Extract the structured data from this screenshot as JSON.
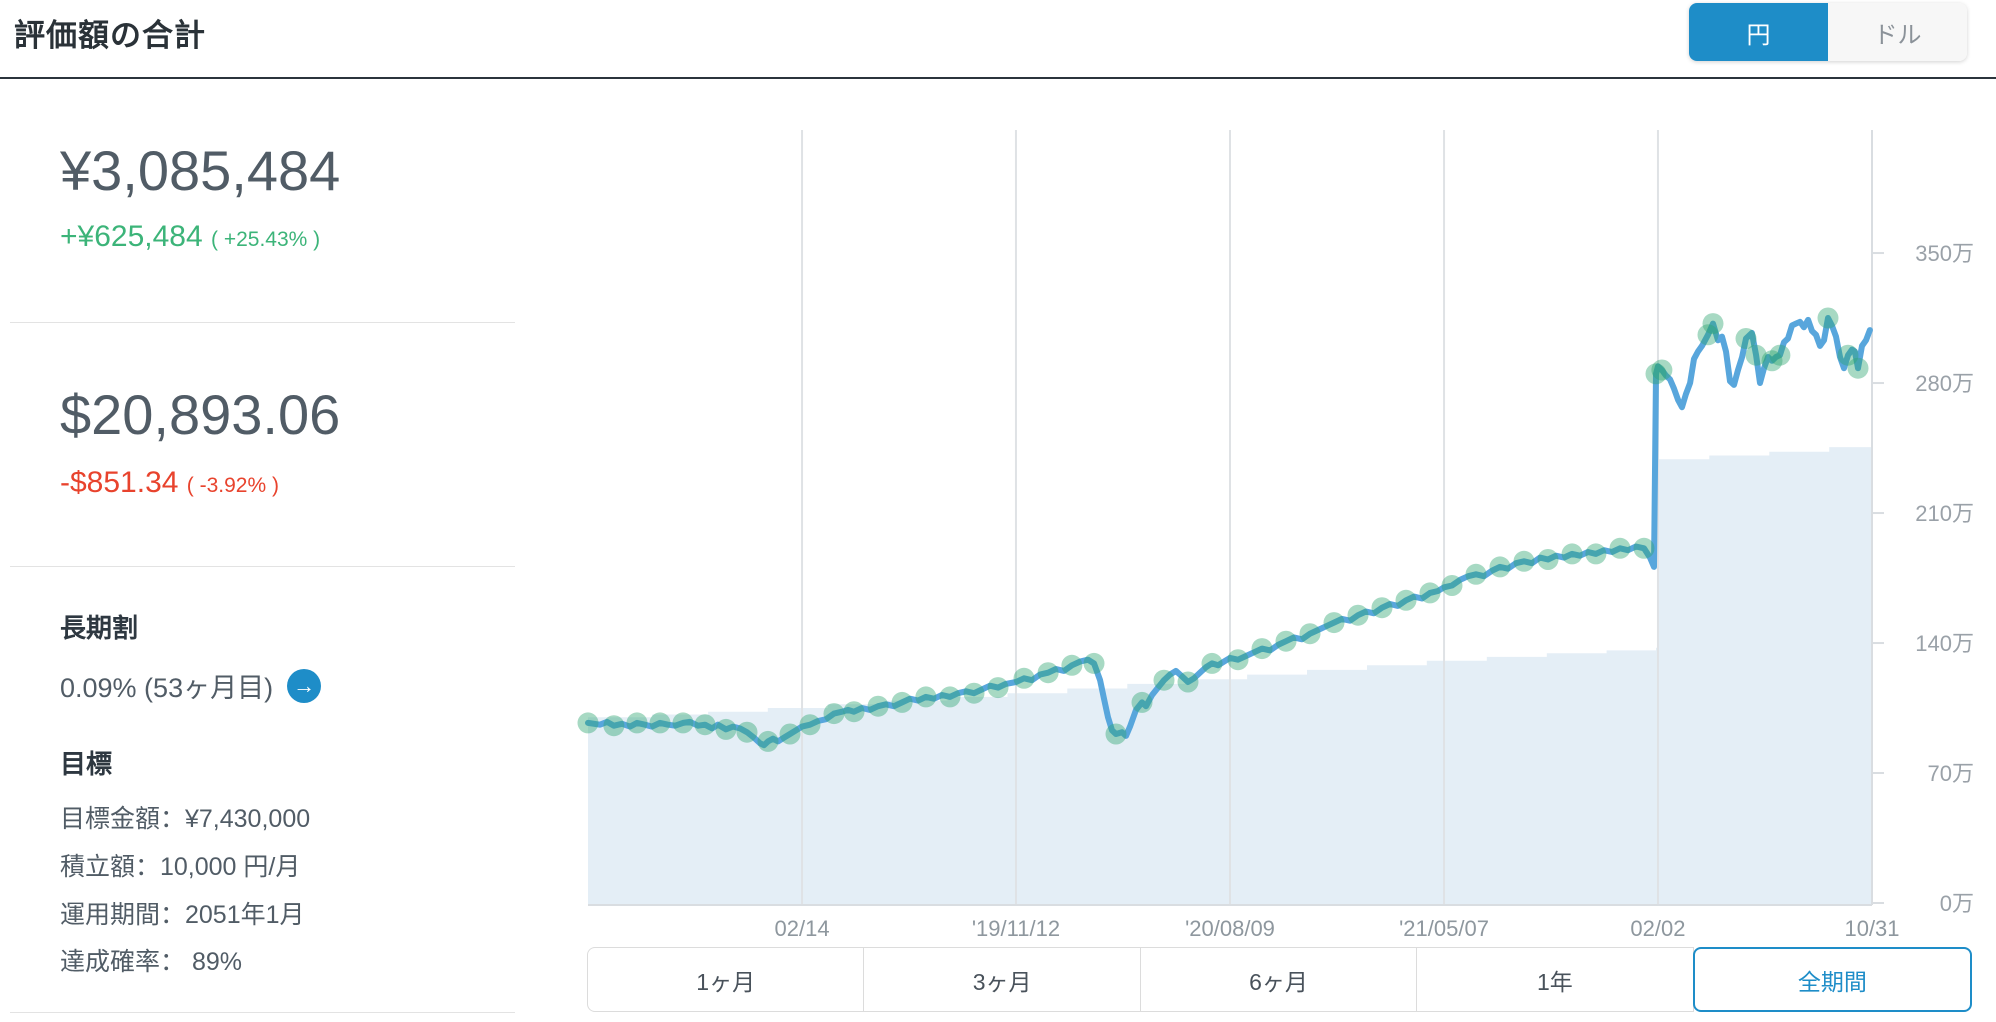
{
  "header": {
    "title": "評価額の合計"
  },
  "currency_toggle": {
    "yen_label": "円",
    "dollar_label": "ドル",
    "selected": "yen"
  },
  "summary": {
    "yen_total": "¥3,085,484",
    "yen_change": "+¥625,484",
    "yen_change_pct": "( +25.43% )",
    "usd_total": "$20,893.06",
    "usd_change": "-$851.34",
    "usd_change_pct": "( -3.92% )"
  },
  "long_term_discount": {
    "heading": "長期割",
    "value": "0.09% (53ヶ月目)",
    "arrow_icon": "→"
  },
  "goal": {
    "heading": "目標",
    "target_amount": "目標金額：¥7,430,000",
    "monthly_deposit": "積立額：10,000 円/月",
    "period": "運用期間：2051年1月",
    "probability": "達成確率： 89%"
  },
  "period_tabs": {
    "items": [
      {
        "label": "1ヶ月",
        "selected": false
      },
      {
        "label": "3ヶ月",
        "selected": false
      },
      {
        "label": "6ヶ月",
        "selected": false
      },
      {
        "label": "1年",
        "selected": false
      },
      {
        "label": "全期間",
        "selected": true
      }
    ]
  },
  "colors": {
    "accent": "#1e8dc8",
    "gain": "#3cb479",
    "loss": "#e8432d",
    "chart_line": "#58a6dc",
    "chart_dot": "#2ea471",
    "chart_area": "#e3edf6",
    "gridline": "#dfe2e5",
    "axis": "#d9dde1"
  },
  "chart_data": {
    "type": "line",
    "description": "Portfolio valuation (blue line), monthly purchases (green dots), cumulative deposits (light blue stepped area). t = fraction of time axis, v = 万円.",
    "y_unit": "万円",
    "ylim": [
      0,
      416
    ],
    "legend_position": "none",
    "grid": true,
    "x_ticks": [
      {
        "label": "02/14",
        "t": 0.1667,
        "grid": true
      },
      {
        "label": "'19/11/12",
        "t": 0.3333,
        "grid": true
      },
      {
        "label": "'20/08/09",
        "t": 0.5,
        "grid": true
      },
      {
        "label": "'21/05/07",
        "t": 0.6667,
        "grid": true
      },
      {
        "label": "02/02",
        "t": 0.8333,
        "grid": true
      },
      {
        "label": "10/31",
        "t": 1.0,
        "grid": false
      }
    ],
    "y_ticks": [
      {
        "label": "0万",
        "v": 0
      },
      {
        "label": "70万",
        "v": 70
      },
      {
        "label": "140万",
        "v": 140
      },
      {
        "label": "210万",
        "v": 210
      },
      {
        "label": "280万",
        "v": 280
      },
      {
        "label": "350万",
        "v": 350
      }
    ],
    "value_line": [
      [
        0,
        97
      ],
      [
        0.0093,
        96
      ],
      [
        0.0148,
        97.5
      ],
      [
        0.0202,
        95.5
      ],
      [
        0.0265,
        96.5
      ],
      [
        0.0327,
        95
      ],
      [
        0.0382,
        97
      ],
      [
        0.0444,
        96
      ],
      [
        0.0498,
        95
      ],
      [
        0.0561,
        97
      ],
      [
        0.0623,
        96
      ],
      [
        0.0678,
        95.5
      ],
      [
        0.074,
        97
      ],
      [
        0.0794,
        97.5
      ],
      [
        0.0857,
        95.5
      ],
      [
        0.0911,
        96
      ],
      [
        0.0966,
        94
      ],
      [
        0.1012,
        96
      ],
      [
        0.1075,
        93.5
      ],
      [
        0.1129,
        95
      ],
      [
        0.1184,
        94
      ],
      [
        0.1238,
        92
      ],
      [
        0.1293,
        89
      ],
      [
        0.134,
        86
      ],
      [
        0.1371,
        85
      ],
      [
        0.1402,
        87
      ],
      [
        0.1441,
        88.5
      ],
      [
        0.148,
        87
      ],
      [
        0.1526,
        89
      ],
      [
        0.1573,
        91
      ],
      [
        0.162,
        93
      ],
      [
        0.1667,
        95
      ],
      [
        0.1729,
        96
      ],
      [
        0.1791,
        98
      ],
      [
        0.1854,
        99
      ],
      [
        0.1916,
        102
      ],
      [
        0.1978,
        103
      ],
      [
        0.2025,
        104
      ],
      [
        0.2072,
        103
      ],
      [
        0.2134,
        105
      ],
      [
        0.2196,
        104
      ],
      [
        0.2259,
        106
      ],
      [
        0.2321,
        107
      ],
      [
        0.2383,
        106
      ],
      [
        0.2446,
        108
      ],
      [
        0.2508,
        110
      ],
      [
        0.257,
        109
      ],
      [
        0.2632,
        111
      ],
      [
        0.2695,
        110
      ],
      [
        0.2757,
        112
      ],
      [
        0.2819,
        111
      ],
      [
        0.2882,
        113
      ],
      [
        0.2944,
        114
      ],
      [
        0.3006,
        113
      ],
      [
        0.3069,
        115
      ],
      [
        0.3131,
        117
      ],
      [
        0.3193,
        116
      ],
      [
        0.3255,
        118
      ],
      [
        0.3333,
        119
      ],
      [
        0.3396,
        121
      ],
      [
        0.3458,
        120
      ],
      [
        0.352,
        123
      ],
      [
        0.3583,
        124
      ],
      [
        0.3645,
        126
      ],
      [
        0.3707,
        125
      ],
      [
        0.3769,
        128
      ],
      [
        0.3832,
        130
      ],
      [
        0.3894,
        131
      ],
      [
        0.3941,
        129
      ],
      [
        0.3988,
        120
      ],
      [
        0.4019,
        110
      ],
      [
        0.405,
        100
      ],
      [
        0.4081,
        93
      ],
      [
        0.4112,
        91
      ],
      [
        0.4159,
        92
      ],
      [
        0.419,
        90
      ],
      [
        0.4221,
        95
      ],
      [
        0.4268,
        104
      ],
      [
        0.4315,
        108
      ],
      [
        0.4346,
        106
      ],
      [
        0.4393,
        112
      ],
      [
        0.4439,
        116
      ],
      [
        0.4486,
        120
      ],
      [
        0.4533,
        123
      ],
      [
        0.4579,
        125
      ],
      [
        0.4626,
        122
      ],
      [
        0.4673,
        119
      ],
      [
        0.472,
        121
      ],
      [
        0.4766,
        124
      ],
      [
        0.4813,
        127
      ],
      [
        0.486,
        129
      ],
      [
        0.4907,
        128
      ],
      [
        0.4953,
        130
      ],
      [
        0.5,
        132
      ],
      [
        0.5062,
        131
      ],
      [
        0.5125,
        133
      ],
      [
        0.5187,
        135
      ],
      [
        0.5249,
        137
      ],
      [
        0.5312,
        136
      ],
      [
        0.5374,
        139
      ],
      [
        0.5436,
        141
      ],
      [
        0.5498,
        143
      ],
      [
        0.5561,
        142
      ],
      [
        0.5623,
        145
      ],
      [
        0.5685,
        147
      ],
      [
        0.5748,
        149
      ],
      [
        0.581,
        151
      ],
      [
        0.5872,
        153
      ],
      [
        0.5935,
        152
      ],
      [
        0.5997,
        155
      ],
      [
        0.6059,
        157
      ],
      [
        0.6121,
        156
      ],
      [
        0.6184,
        159
      ],
      [
        0.6246,
        161
      ],
      [
        0.6308,
        160
      ],
      [
        0.6371,
        163
      ],
      [
        0.6433,
        165
      ],
      [
        0.6495,
        164
      ],
      [
        0.6558,
        167
      ],
      [
        0.662,
        168
      ],
      [
        0.6667,
        170
      ],
      [
        0.6729,
        171
      ],
      [
        0.6791,
        174
      ],
      [
        0.6854,
        176
      ],
      [
        0.6916,
        177
      ],
      [
        0.6978,
        176
      ],
      [
        0.7041,
        179
      ],
      [
        0.7103,
        181
      ],
      [
        0.7165,
        180
      ],
      [
        0.7227,
        183
      ],
      [
        0.729,
        184
      ],
      [
        0.7352,
        183
      ],
      [
        0.7414,
        186
      ],
      [
        0.7477,
        185
      ],
      [
        0.7539,
        187
      ],
      [
        0.7601,
        186
      ],
      [
        0.7664,
        188
      ],
      [
        0.7726,
        187
      ],
      [
        0.7788,
        189
      ],
      [
        0.785,
        188
      ],
      [
        0.7913,
        190
      ],
      [
        0.7975,
        189
      ],
      [
        0.8037,
        191
      ],
      [
        0.81,
        190
      ],
      [
        0.8162,
        192
      ],
      [
        0.8224,
        191
      ],
      [
        0.8271,
        186
      ],
      [
        0.8302,
        181
      ],
      [
        0.8318,
        285
      ],
      [
        0.8333,
        289
      ],
      [
        0.8364,
        287
      ],
      [
        0.8396,
        284
      ],
      [
        0.8427,
        282
      ],
      [
        0.8458,
        277
      ],
      [
        0.8489,
        271
      ],
      [
        0.852,
        267
      ],
      [
        0.8551,
        274
      ],
      [
        0.8583,
        280
      ],
      [
        0.8614,
        293
      ],
      [
        0.8645,
        297
      ],
      [
        0.8676,
        300
      ],
      [
        0.8723,
        306
      ],
      [
        0.8762,
        312
      ],
      [
        0.8801,
        303
      ],
      [
        0.8832,
        305
      ],
      [
        0.8863,
        297
      ],
      [
        0.8894,
        281
      ],
      [
        0.8925,
        279
      ],
      [
        0.8956,
        287
      ],
      [
        0.8988,
        294
      ],
      [
        0.9019,
        304
      ],
      [
        0.9065,
        307
      ],
      [
        0.9097,
        295
      ],
      [
        0.9128,
        280
      ],
      [
        0.9159,
        288
      ],
      [
        0.919,
        294
      ],
      [
        0.9221,
        292
      ],
      [
        0.9252,
        294
      ],
      [
        0.9283,
        295
      ],
      [
        0.9315,
        302
      ],
      [
        0.9346,
        304
      ],
      [
        0.9377,
        311
      ],
      [
        0.9408,
        312
      ],
      [
        0.9439,
        313
      ],
      [
        0.947,
        310
      ],
      [
        0.9502,
        314
      ],
      [
        0.9533,
        308
      ],
      [
        0.9564,
        306
      ],
      [
        0.9595,
        300
      ],
      [
        0.9626,
        303
      ],
      [
        0.9657,
        315
      ],
      [
        0.9688,
        311
      ],
      [
        0.972,
        305
      ],
      [
        0.9751,
        294
      ],
      [
        0.9782,
        288
      ],
      [
        0.9813,
        295
      ],
      [
        0.9844,
        298
      ],
      [
        0.9867,
        297
      ],
      [
        0.9891,
        288
      ],
      [
        0.9922,
        300
      ],
      [
        0.9953,
        303
      ],
      [
        0.9984,
        308.5
      ]
    ],
    "purchase_dots": [
      [
        0,
        97
      ],
      [
        0.0202,
        95.5
      ],
      [
        0.0382,
        97
      ],
      [
        0.0561,
        97
      ],
      [
        0.074,
        97
      ],
      [
        0.0911,
        96
      ],
      [
        0.1075,
        93.5
      ],
      [
        0.1238,
        92
      ],
      [
        0.1402,
        87
      ],
      [
        0.1573,
        91
      ],
      [
        0.1729,
        96
      ],
      [
        0.1916,
        102
      ],
      [
        0.2072,
        103
      ],
      [
        0.2259,
        106
      ],
      [
        0.2446,
        108
      ],
      [
        0.2632,
        111
      ],
      [
        0.2819,
        111
      ],
      [
        0.3006,
        113
      ],
      [
        0.3193,
        116
      ],
      [
        0.3396,
        121
      ],
      [
        0.3583,
        124
      ],
      [
        0.3769,
        128
      ],
      [
        0.3941,
        129
      ],
      [
        0.4112,
        91
      ],
      [
        0.4315,
        108
      ],
      [
        0.4486,
        120
      ],
      [
        0.4673,
        119
      ],
      [
        0.486,
        129
      ],
      [
        0.5062,
        131
      ],
      [
        0.5249,
        137
      ],
      [
        0.5436,
        141
      ],
      [
        0.5623,
        145
      ],
      [
        0.581,
        151
      ],
      [
        0.5997,
        155
      ],
      [
        0.6184,
        159
      ],
      [
        0.6371,
        163
      ],
      [
        0.6558,
        167
      ],
      [
        0.6729,
        171
      ],
      [
        0.6916,
        177
      ],
      [
        0.7103,
        181
      ],
      [
        0.729,
        184
      ],
      [
        0.7477,
        185
      ],
      [
        0.7664,
        188
      ],
      [
        0.785,
        188
      ],
      [
        0.8037,
        191
      ],
      [
        0.8224,
        191
      ],
      [
        0.8318,
        285
      ],
      [
        0.8364,
        287
      ],
      [
        0.8723,
        306
      ],
      [
        0.8762,
        312
      ],
      [
        0.9019,
        304
      ],
      [
        0.9097,
        295
      ],
      [
        0.9221,
        292
      ],
      [
        0.9283,
        295
      ],
      [
        0.9657,
        315
      ],
      [
        0.9813,
        295
      ],
      [
        0.9891,
        288
      ]
    ],
    "deposits_area": [
      [
        0,
        100
      ],
      [
        0.05,
        101.5
      ],
      [
        0.0935,
        103
      ],
      [
        0.14,
        105
      ],
      [
        0.1867,
        107
      ],
      [
        0.2333,
        109
      ],
      [
        0.28,
        111
      ],
      [
        0.3267,
        113
      ],
      [
        0.3733,
        115.5
      ],
      [
        0.42,
        118
      ],
      [
        0.4667,
        120.5
      ],
      [
        0.5133,
        123
      ],
      [
        0.56,
        125.5
      ],
      [
        0.6067,
        128
      ],
      [
        0.6533,
        130.5
      ],
      [
        0.7,
        132.5
      ],
      [
        0.7467,
        134.5
      ],
      [
        0.7933,
        136
      ],
      [
        0.8318,
        137.5
      ],
      [
        0.8334,
        239
      ],
      [
        0.8733,
        241
      ],
      [
        0.92,
        243
      ],
      [
        0.9667,
        245.5
      ],
      [
        1,
        247
      ]
    ]
  }
}
